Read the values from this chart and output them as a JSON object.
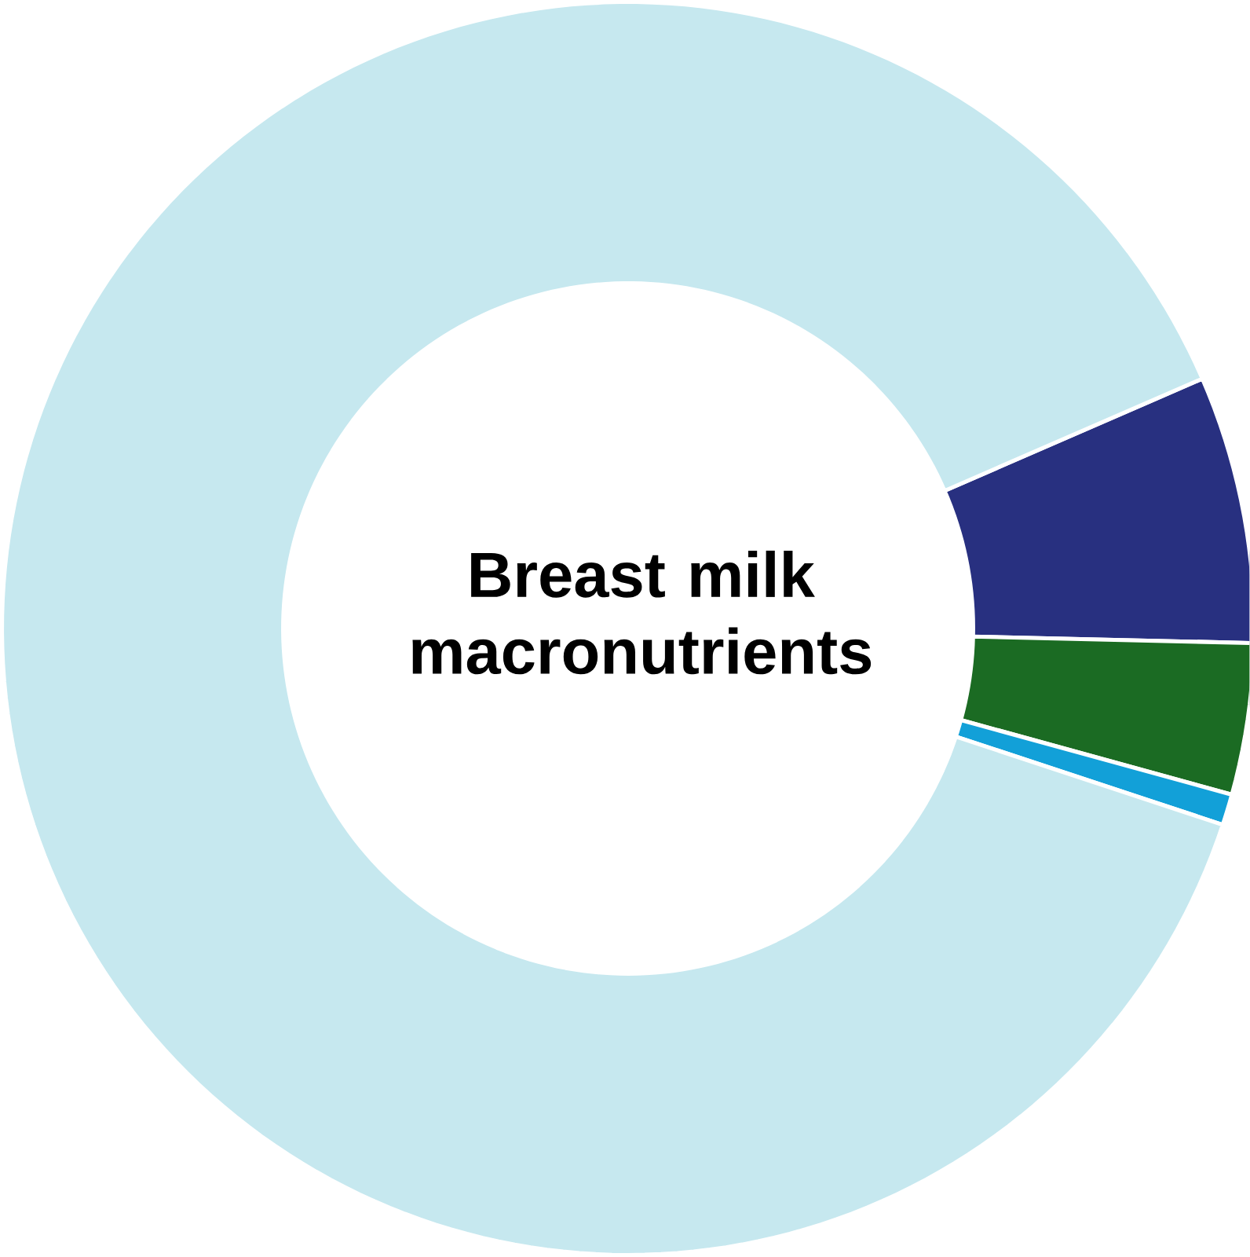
{
  "chart_data": {
    "type": "donut",
    "title": "Breast milk macronutrients",
    "categories": [
      null,
      null,
      null,
      null
    ],
    "values": [
      6.9,
      3.9,
      0.8,
      88.4
    ],
    "colors": [
      "#283080",
      "#1b6b23",
      "#12a0d8",
      "#c6e8ef"
    ]
  }
}
